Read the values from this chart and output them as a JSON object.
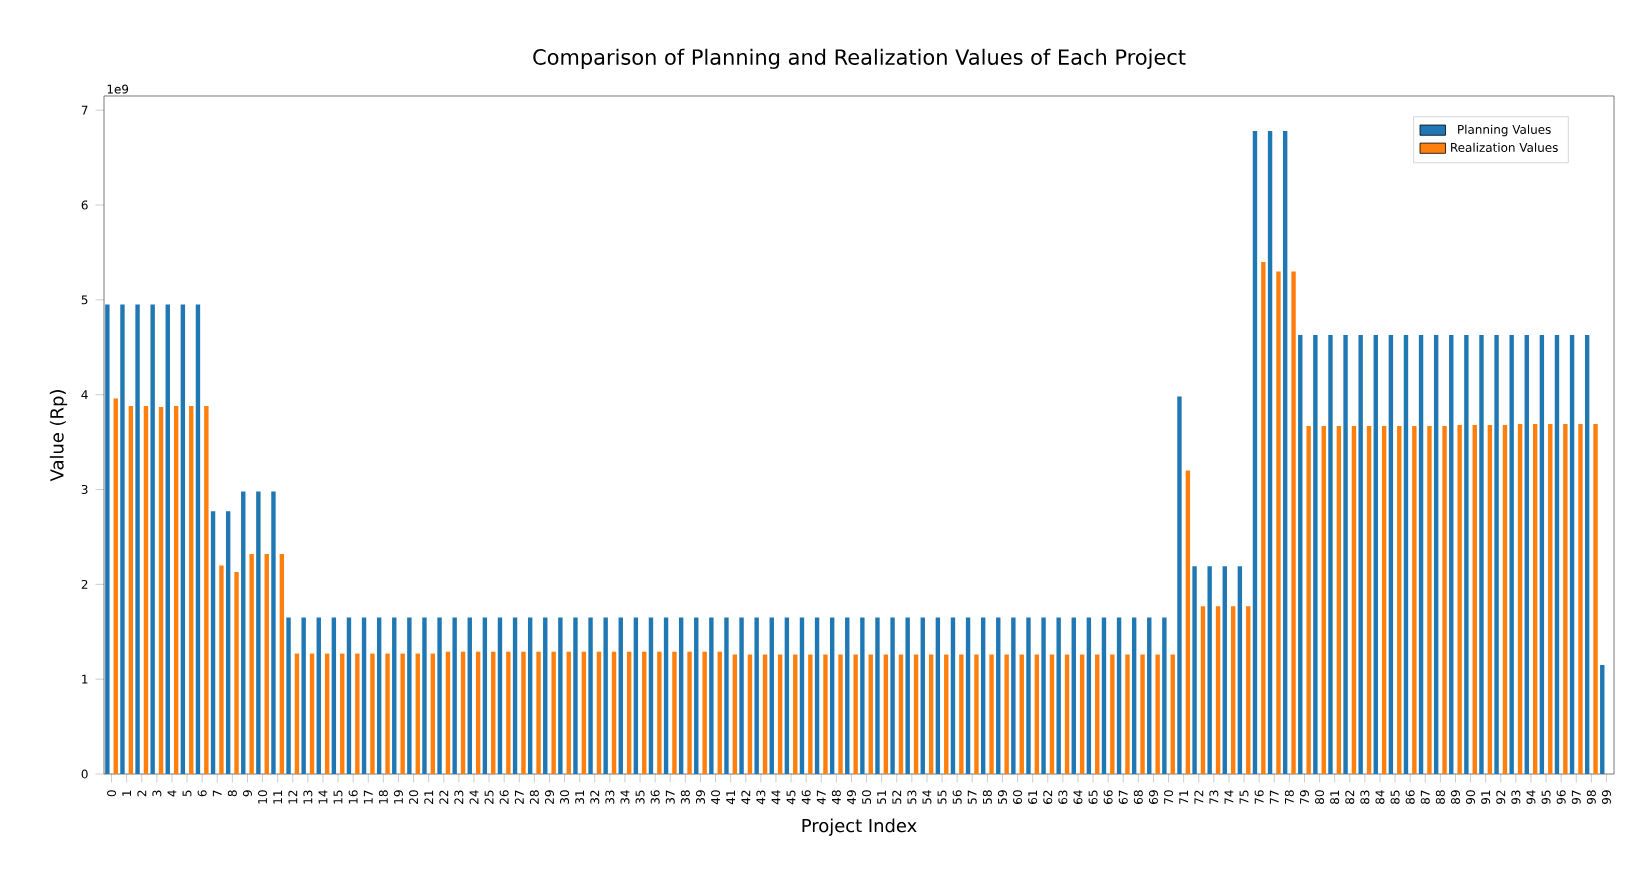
{
  "chart_data": {
    "type": "bar",
    "title": "Comparison of Planning and Realization Values of Each Project",
    "xlabel": "Project Index",
    "ylabel": "Value (Rp)",
    "annotations": [
      "1e9"
    ],
    "categories": [
      "0",
      "1",
      "2",
      "3",
      "4",
      "5",
      "6",
      "7",
      "8",
      "9",
      "10",
      "11",
      "12",
      "13",
      "14",
      "15",
      "16",
      "17",
      "18",
      "19",
      "20",
      "21",
      "22",
      "23",
      "24",
      "25",
      "26",
      "27",
      "28",
      "29",
      "30",
      "31",
      "32",
      "33",
      "34",
      "35",
      "36",
      "37",
      "38",
      "39",
      "40",
      "41",
      "42",
      "43",
      "44",
      "45",
      "46",
      "47",
      "48",
      "49",
      "50",
      "51",
      "52",
      "53",
      "54",
      "55",
      "56",
      "57",
      "58",
      "59",
      "60",
      "61",
      "62",
      "63",
      "64",
      "65",
      "66",
      "67",
      "68",
      "69",
      "70",
      "71",
      "72",
      "73",
      "74",
      "75",
      "76",
      "77",
      "78",
      "79",
      "80",
      "81",
      "82",
      "83",
      "84",
      "85",
      "86",
      "87",
      "88",
      "89",
      "90",
      "91",
      "92",
      "93",
      "94",
      "95",
      "96",
      "97",
      "98",
      "99"
    ],
    "series": [
      {
        "name": "Planning Values",
        "color": "#1f77b4",
        "values": [
          4.95,
          4.95,
          4.95,
          4.95,
          4.95,
          4.95,
          4.95,
          2.77,
          2.77,
          2.98,
          2.98,
          2.98,
          1.65,
          1.65,
          1.65,
          1.65,
          1.65,
          1.65,
          1.65,
          1.65,
          1.65,
          1.65,
          1.65,
          1.65,
          1.65,
          1.65,
          1.65,
          1.65,
          1.65,
          1.65,
          1.65,
          1.65,
          1.65,
          1.65,
          1.65,
          1.65,
          1.65,
          1.65,
          1.65,
          1.65,
          1.65,
          1.65,
          1.65,
          1.65,
          1.65,
          1.65,
          1.65,
          1.65,
          1.65,
          1.65,
          1.65,
          1.65,
          1.65,
          1.65,
          1.65,
          1.65,
          1.65,
          1.65,
          1.65,
          1.65,
          1.65,
          1.65,
          1.65,
          1.65,
          1.65,
          1.65,
          1.65,
          1.65,
          1.65,
          1.65,
          1.65,
          3.98,
          2.19,
          2.19,
          2.19,
          2.19,
          6.78,
          6.78,
          6.78,
          4.63,
          4.63,
          4.63,
          4.63,
          4.63,
          4.63,
          4.63,
          4.63,
          4.63,
          4.63,
          4.63,
          4.63,
          4.63,
          4.63,
          4.63,
          4.63,
          4.63,
          4.63,
          4.63,
          4.63,
          1.15
        ]
      },
      {
        "name": "Realization Values",
        "color": "#ff7f0e",
        "values": [
          3.96,
          3.88,
          3.88,
          3.87,
          3.88,
          3.88,
          3.88,
          2.2,
          2.13,
          2.32,
          2.32,
          2.32,
          1.27,
          1.27,
          1.27,
          1.27,
          1.27,
          1.27,
          1.27,
          1.27,
          1.27,
          1.27,
          1.29,
          1.29,
          1.29,
          1.29,
          1.29,
          1.29,
          1.29,
          1.29,
          1.29,
          1.29,
          1.29,
          1.29,
          1.29,
          1.29,
          1.29,
          1.29,
          1.29,
          1.29,
          1.29,
          1.26,
          1.26,
          1.26,
          1.26,
          1.26,
          1.26,
          1.26,
          1.26,
          1.26,
          1.26,
          1.26,
          1.26,
          1.26,
          1.26,
          1.26,
          1.26,
          1.26,
          1.26,
          1.26,
          1.26,
          1.26,
          1.26,
          1.26,
          1.26,
          1.26,
          1.26,
          1.26,
          1.26,
          1.26,
          1.26,
          3.2,
          1.77,
          1.77,
          1.77,
          1.77,
          5.4,
          5.3,
          5.3,
          3.67,
          3.67,
          3.67,
          3.67,
          3.67,
          3.67,
          3.67,
          3.67,
          3.67,
          3.67,
          3.68,
          3.68,
          3.68,
          3.68,
          3.69,
          3.69,
          3.69,
          3.69,
          3.69,
          3.69,
          null
        ]
      }
    ],
    "ylim": [
      0,
      7.15
    ],
    "yticks": [
      0,
      1,
      2,
      3,
      4,
      5,
      6,
      7
    ],
    "legend": "top right"
  }
}
